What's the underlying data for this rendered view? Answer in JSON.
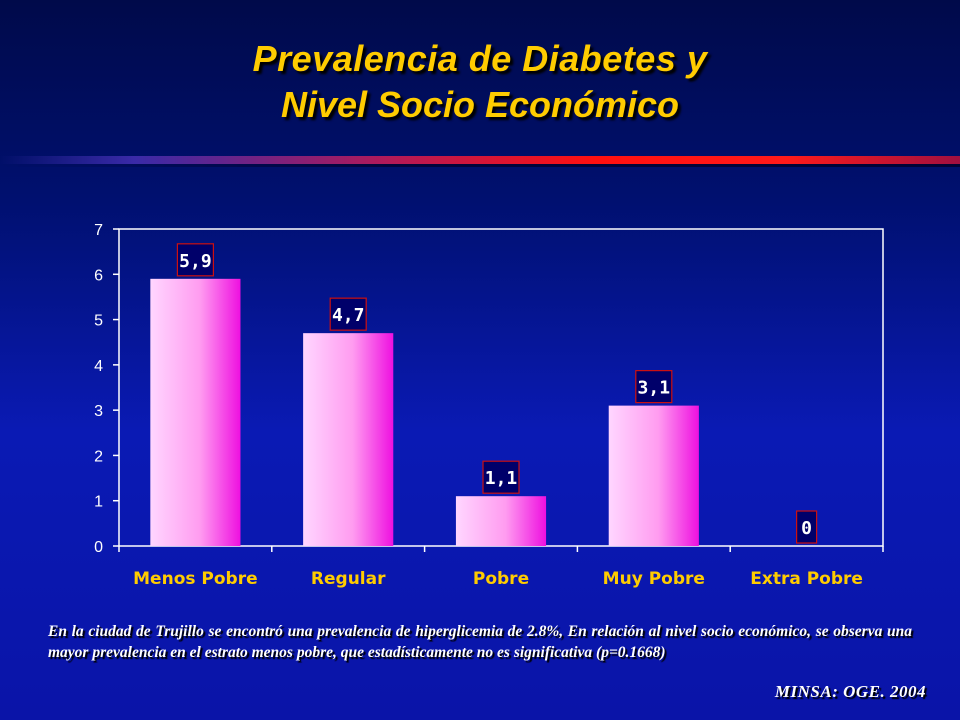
{
  "title": {
    "line1": "Prevalencia de Diabetes y",
    "line2": "Nivel Socio Económico"
  },
  "chart_data": {
    "type": "bar",
    "categories": [
      "Menos Pobre",
      "Regular",
      "Pobre",
      "Muy Pobre",
      "Extra Pobre"
    ],
    "values": [
      5.9,
      4.7,
      1.1,
      3.1,
      0
    ],
    "data_labels": [
      "5,9",
      "4,7",
      "1,1",
      "3,1",
      "0"
    ],
    "ylim": [
      0,
      7
    ],
    "yticks": [
      0,
      1,
      2,
      3,
      4,
      5,
      6,
      7
    ],
    "grid": false,
    "legend": "none",
    "colors": {
      "bar_light": "#ffd6ff",
      "bar_mid": "#ff9cf0",
      "bar_dark": "#ee10e0",
      "plot_border": "#ffffff",
      "label_box_bg": "#00006a",
      "label_box_border": "#cc1010",
      "label_text": "#ffffff",
      "category_text": "#ffcc00",
      "tick_text": "#ffffff"
    }
  },
  "note": "En la ciudad de Trujillo se encontró una prevalencia de hiperglicemia de 2.8%, En relación al nivel socio económico, se observa una mayor prevalencia en el estrato menos pobre, que estadísticamente no es significativa (p=0.1668)",
  "source": "MINSA: OGE. 2004"
}
